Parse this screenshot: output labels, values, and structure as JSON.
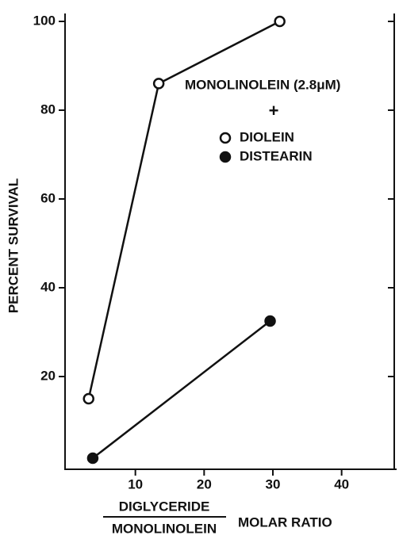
{
  "chart_data": {
    "type": "line",
    "y_label": "PERCENT SURVIVAL",
    "x_label_numerator": "DIGLYCERIDE",
    "x_label_denominator": "MONOLINOLEIN",
    "x_label_suffix": "MOLAR RATIO",
    "legend_title": "MONOLINOLEIN (2.8μM)",
    "legend_joiner": "+",
    "xlim": [
      0,
      48
    ],
    "xticks": [
      10,
      20,
      30,
      40
    ],
    "ylim": [
      0,
      100
    ],
    "yticks": [
      20,
      40,
      60,
      80,
      100
    ],
    "series": [
      {
        "name": "DIOLEIN",
        "color": "#111111",
        "marker": "open",
        "x": [
          3.2,
          13.4,
          31
        ],
        "values": [
          15,
          86,
          100
        ]
      },
      {
        "name": "DISTEARIN",
        "color": "#111111",
        "marker": "filled",
        "x": [
          3.8,
          29.6
        ],
        "values": [
          1.6,
          32.5
        ]
      }
    ]
  }
}
